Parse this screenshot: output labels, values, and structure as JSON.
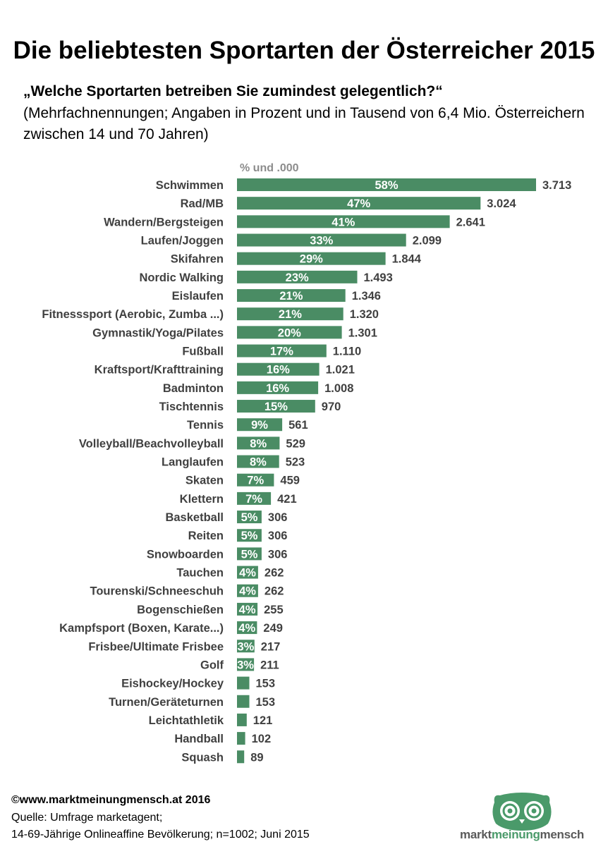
{
  "title": "Die beliebtesten Sportarten der Österreicher 2015",
  "question": "„Welche Sportarten betreiben Sie  zumindest gelegentlich?“",
  "subtitle": "(Mehrfachnennungen; Angaben in Prozent und in Tausend von 6,4 Mio. Österreichern zwischen 14 und 70 Jahren)",
  "unit_label": "% und .000",
  "footer": {
    "copyright": "©www.marktmeinungmensch.at 2016",
    "source_line1": "Quelle: Umfrage marketagent;",
    "source_line2": "14-69-Jährige Onlineaffine Bevölkerung; n=1002; Juni 2015"
  },
  "logo": {
    "word1": "markt",
    "word2": "meinung",
    "word3": "mensch",
    "icon": "owl-icon"
  },
  "colors": {
    "bar": "#4a8c64",
    "label_text": "#404040",
    "value_text": "#404040",
    "unit_label": "#8c8c8c"
  },
  "chart_data": {
    "type": "bar",
    "orientation": "horizontal",
    "title": "Die beliebtesten Sportarten der Österreicher 2015",
    "xlabel": "% und .000",
    "ylabel": "",
    "categories": [
      "Schwimmen",
      "Rad/MB",
      "Wandern/Bergsteigen",
      "Laufen/Joggen",
      "Skifahren",
      "Nordic Walking",
      "Eislaufen",
      "Fitnesssport (Aerobic, Zumba ...)",
      "Gymnastik/Yoga/Pilates",
      "Fußball",
      "Kraftsport/Krafttraining",
      "Badminton",
      "Tischtennis",
      "Tennis",
      "Volleyball/Beachvolleyball",
      "Langlaufen",
      "Skaten",
      "Klettern",
      "Basketball",
      "Reiten",
      "Snowboarden",
      "Tauchen",
      "Tourenski/Schneeschuh",
      "Bogenschießen",
      "Kampfsport (Boxen, Karate...)",
      "Frisbee/Ultimate Frisbee",
      "Golf",
      "Eishockey/Hockey",
      "Turnen/Geräteturnen",
      "Leichtathletik",
      "Handball",
      "Squash"
    ],
    "percent_labels": [
      "58%",
      "47%",
      "41%",
      "33%",
      "29%",
      "23%",
      "21%",
      "21%",
      "20%",
      "17%",
      "16%",
      "16%",
      "15%",
      "9%",
      "8%",
      "8%",
      "7%",
      "7%",
      "5%",
      "5%",
      "5%",
      "4%",
      "4%",
      "4%",
      "4%",
      "3%",
      "3%",
      "",
      "",
      "",
      "",
      ""
    ],
    "value_labels": [
      "3.713",
      "3.024",
      "2.641",
      "2.099",
      "1.844",
      "1.493",
      "1.346",
      "1.320",
      "1.301",
      "1.110",
      "1.021",
      "1.008",
      "970",
      "561",
      "529",
      "523",
      "459",
      "421",
      "306",
      "306",
      "306",
      "262",
      "262",
      "255",
      "249",
      "217",
      "211",
      "153",
      "153",
      "121",
      "102",
      "89"
    ],
    "values": [
      3713,
      3024,
      2641,
      2099,
      1844,
      1493,
      1346,
      1320,
      1301,
      1110,
      1021,
      1008,
      970,
      561,
      529,
      523,
      459,
      421,
      306,
      306,
      306,
      262,
      262,
      255,
      249,
      217,
      211,
      153,
      153,
      121,
      102,
      89
    ],
    "grid": false,
    "legend": "none"
  }
}
